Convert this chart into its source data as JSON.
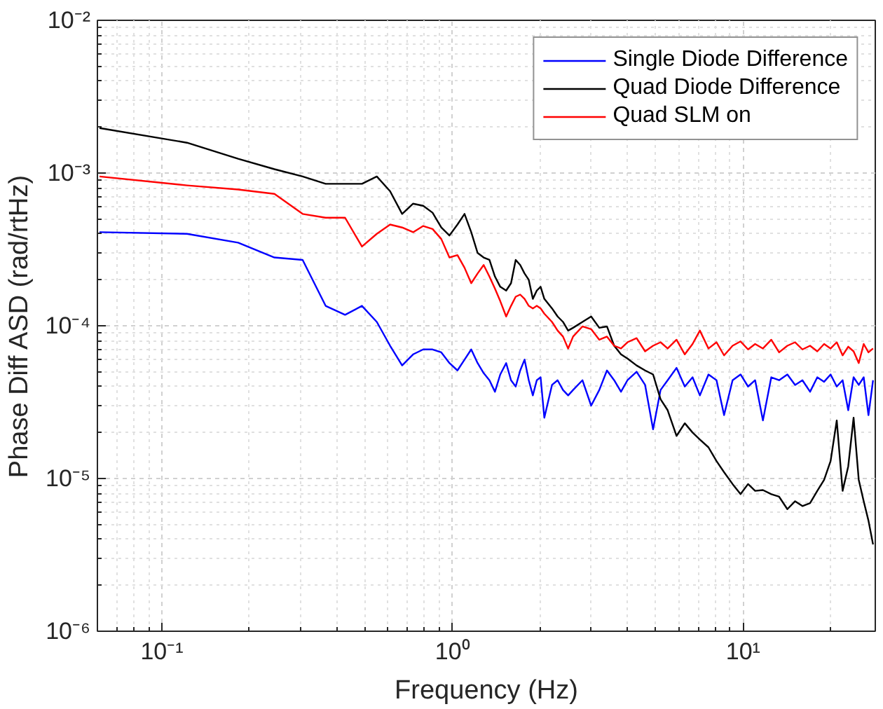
{
  "chart_data": {
    "type": "line",
    "xlabel": "Frequency (Hz)",
    "ylabel": "Phase Diff ASD (rad/rtHz)",
    "log": "xy",
    "grid": true,
    "legend": "top right",
    "line_style": "solid",
    "marker": "none",
    "x": [
      0.061,
      0.122,
      0.183,
      0.244,
      0.305,
      0.366,
      0.427,
      0.488,
      0.549,
      0.61,
      0.671,
      0.732,
      0.793,
      0.854,
      0.915,
      0.976,
      1.04,
      1.1,
      1.16,
      1.22,
      1.28,
      1.34,
      1.4,
      1.46,
      1.53,
      1.59,
      1.65,
      1.71,
      1.77,
      1.83,
      1.89,
      1.95,
      2.01,
      2.07,
      2.2,
      2.3,
      2.4,
      2.5,
      2.6,
      2.8,
      3.0,
      3.2,
      3.4,
      3.6,
      3.8,
      4.0,
      4.3,
      4.6,
      4.9,
      5.2,
      5.5,
      5.9,
      6.3,
      6.7,
      7.1,
      7.6,
      8.1,
      8.6,
      9.2,
      9.8,
      10.4,
      11,
      11.7,
      12.5,
      13.3,
      14.2,
      15.1,
      16,
      17,
      18,
      19,
      20,
      21,
      22,
      23,
      24,
      25,
      26,
      27,
      28
    ],
    "xlim": [
      0.06,
      28.5
    ],
    "xticks": [
      {
        "value": 0.1,
        "label": "10⁻¹"
      },
      {
        "value": 1,
        "label": "10⁰"
      },
      {
        "value": 10,
        "label": "10¹"
      }
    ],
    "ylim": [
      1e-06,
      0.01
    ],
    "yticks": [
      {
        "value": 1e-06,
        "label": "10⁻⁶"
      },
      {
        "value": 1e-05,
        "label": "10⁻⁵"
      },
      {
        "value": 0.0001,
        "label": "10⁻⁴"
      },
      {
        "value": 0.001,
        "label": "10⁻³"
      },
      {
        "value": 0.01,
        "label": "10⁻²"
      }
    ],
    "series": [
      {
        "name": "Single Diode Difference",
        "color": "#0000ff",
        "values": [
          0.00041,
          0.0004,
          0.00035,
          0.00028,
          0.00027,
          0.000135,
          0.000118,
          0.000135,
          0.000106,
          7.4e-05,
          5.5e-05,
          6.5e-05,
          7e-05,
          7e-05,
          6.7e-05,
          5.7e-05,
          5.1e-05,
          6e-05,
          7e-05,
          5.7e-05,
          4.9e-05,
          4.4e-05,
          3.7e-05,
          4.8e-05,
          5.7e-05,
          4.4e-05,
          4e-05,
          5.1e-05,
          6e-05,
          4.4e-05,
          3.5e-05,
          4.4e-05,
          4.6e-05,
          2.5e-05,
          4.1e-05,
          4.4e-05,
          3.8e-05,
          3.5e-05,
          3.8e-05,
          4.4e-05,
          3e-05,
          3.8e-05,
          5.1e-05,
          4.4e-05,
          3.7e-05,
          4.4e-05,
          5e-05,
          4.1e-05,
          2.1e-05,
          3.8e-05,
          4.4e-05,
          5.3e-05,
          4e-05,
          4.6e-05,
          3.5e-05,
          4.8e-05,
          4.4e-05,
          2.6e-05,
          4.4e-05,
          4.8e-05,
          4e-05,
          4.4e-05,
          2.4e-05,
          4.6e-05,
          4.4e-05,
          4.8e-05,
          4.1e-05,
          4.4e-05,
          3.7e-05,
          4.6e-05,
          4.3e-05,
          4.8e-05,
          4e-05,
          4.4e-05,
          2.8e-05,
          4.6e-05,
          4.1e-05,
          4.6e-05,
          2.6e-05,
          4.4e-05
        ]
      },
      {
        "name": "Quad Diode Difference",
        "color": "#000000",
        "values": [
          0.00197,
          0.00158,
          0.00124,
          0.00106,
          0.00095,
          0.00085,
          0.00085,
          0.00085,
          0.00095,
          0.00076,
          0.00054,
          0.00063,
          0.00061,
          0.00055,
          0.00044,
          0.00039,
          0.00046,
          0.00054,
          0.00041,
          0.0003,
          0.00028,
          0.00027,
          0.00021,
          0.00018,
          0.00017,
          0.00019,
          0.00027,
          0.00025,
          0.00022,
          0.0002,
          0.00015,
          0.00017,
          0.00018,
          0.00015,
          0.00013,
          0.000115,
          0.000106,
          9.3e-05,
          9.7e-05,
          0.000106,
          0.000115,
          9.7e-05,
          9.9e-05,
          7.4e-05,
          6.5e-05,
          6.1e-05,
          5.5e-05,
          5.1e-05,
          4.8e-05,
          3.3e-05,
          2.8e-05,
          1.9e-05,
          2.3e-05,
          2e-05,
          1.8e-05,
          1.6e-05,
          1.3e-05,
          1.1e-05,
          9.2e-06,
          7.9e-06,
          9.2e-06,
          8.3e-06,
          8.4e-06,
          7.9e-06,
          7.6e-06,
          6.3e-06,
          7.1e-06,
          6.6e-06,
          6.9e-06,
          8.3e-06,
          9.8e-06,
          1.3e-05,
          2.4e-05,
          8.3e-06,
          1.2e-05,
          2.5e-05,
          9.8e-06,
          7.1e-06,
          5.3e-06,
          3.7e-06
        ]
      },
      {
        "name": "Quad SLM on",
        "color": "#ff0000",
        "values": [
          0.00095,
          0.00083,
          0.00078,
          0.00073,
          0.00054,
          0.00051,
          0.00051,
          0.00033,
          0.0004,
          0.00046,
          0.00044,
          0.00041,
          0.00045,
          0.00043,
          0.00037,
          0.00028,
          0.00029,
          0.00024,
          0.00019,
          0.00022,
          0.00025,
          0.00021,
          0.000175,
          0.000145,
          0.000115,
          0.000135,
          0.000155,
          0.00016,
          0.00015,
          0.000135,
          0.00013,
          0.000135,
          0.00013,
          0.00012,
          0.000106,
          9.3e-05,
          8.5e-05,
          7.1e-05,
          8.5e-05,
          9.9e-05,
          9.5e-05,
          8.1e-05,
          8.5e-05,
          7.4e-05,
          7.1e-05,
          7.8e-05,
          8.3e-05,
          6.8e-05,
          7.4e-05,
          7.8e-05,
          7.1e-05,
          8.1e-05,
          6.5e-05,
          7.6e-05,
          9.3e-05,
          7.1e-05,
          7.8e-05,
          6.4e-05,
          7.4e-05,
          7.9e-05,
          7e-05,
          7.6e-05,
          7.1e-05,
          8.1e-05,
          6.7e-05,
          7.4e-05,
          7.8e-05,
          7e-05,
          7.4e-05,
          6.8e-05,
          7.6e-05,
          7.1e-05,
          7.8e-05,
          6.4e-05,
          7.3e-05,
          6.8e-05,
          5.7e-05,
          7.6e-05,
          6.7e-05,
          7.1e-05
        ]
      }
    ]
  }
}
